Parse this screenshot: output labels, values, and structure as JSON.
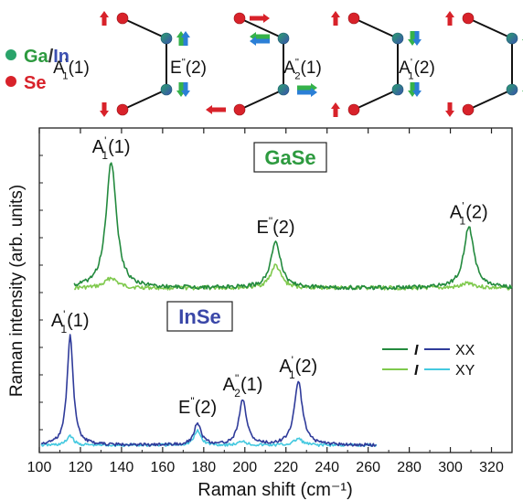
{
  "legend_top": {
    "gain_label": "Ga/In",
    "gain_ga": "Ga",
    "gain_sep": "/",
    "gain_in": "In",
    "se_label": "Se",
    "atom_colors": {
      "metal": "#2aa36a",
      "metal_alt": "#3b4fb0",
      "se": "#d8222a"
    }
  },
  "modes": [
    {
      "base": "A",
      "sup": "'",
      "sub": "1",
      "idx": "(1)"
    },
    {
      "base": "E",
      "sup": "\"",
      "sub": "",
      "idx": "(2)"
    },
    {
      "base": "A",
      "sup": "\"",
      "sub": "2",
      "idx": "(1)"
    },
    {
      "base": "A",
      "sup": "'",
      "sub": "1",
      "idx": "(2)"
    }
  ],
  "chart_data": {
    "type": "line",
    "xlabel": "Raman shift (cm⁻¹)",
    "ylabel": "Raman intensity (arb. units)",
    "xlim": [
      100,
      330
    ],
    "xticks": [
      100,
      120,
      140,
      160,
      180,
      200,
      220,
      240,
      260,
      280,
      300,
      320
    ],
    "colors": {
      "gase_xx": "#238a3e",
      "gase_xy": "#7fc94d",
      "inse_xx": "#2f3b9a",
      "inse_xy": "#45c9e0"
    },
    "panels": [
      {
        "name": "GaSe",
        "name_color": "#2d9a3f",
        "x_range": [
          117,
          330
        ],
        "series": [
          {
            "pol": "XX",
            "peaks": [
              [
                135,
                1.0,
                3.0
              ],
              [
                215,
                0.36,
                3.0
              ],
              [
                309,
                0.48,
                3.0
              ]
            ]
          },
          {
            "pol": "XY",
            "peaks": [
              [
                135,
                0.08,
                3.5
              ],
              [
                215,
                0.18,
                3.0
              ],
              [
                309,
                0.04,
                3.5
              ]
            ]
          }
        ],
        "peak_labels": [
          {
            "x": 135,
            "base": "A",
            "sup": "'",
            "sub": "1",
            "idx": "(1)"
          },
          {
            "x": 215,
            "base": "E",
            "sup": "\"",
            "sub": "",
            "idx": "(2)"
          },
          {
            "x": 309,
            "base": "A",
            "sup": "'",
            "sub": "1",
            "idx": "(2)"
          }
        ]
      },
      {
        "name": "InSe",
        "name_color": "#3a47a8",
        "x_range": [
          101,
          264
        ],
        "series": [
          {
            "pol": "XX",
            "peaks": [
              [
                115,
                1.0,
                1.8
              ],
              [
                177,
                0.2,
                2.0
              ],
              [
                199,
                0.41,
                2.2
              ],
              [
                226,
                0.58,
                2.4
              ]
            ]
          },
          {
            "pol": "XY",
            "peaks": [
              [
                115,
                0.09,
                1.8
              ],
              [
                177,
                0.13,
                2.0
              ],
              [
                199,
                0.04,
                2.0
              ],
              [
                226,
                0.06,
                2.4
              ]
            ]
          }
        ],
        "peak_labels": [
          {
            "x": 115,
            "base": "A",
            "sup": "'",
            "sub": "1",
            "idx": "(1)"
          },
          {
            "x": 177,
            "base": "E",
            "sup": "\"",
            "sub": "",
            "idx": "(2)"
          },
          {
            "x": 199,
            "base": "A",
            "sup": "\"",
            "sub": "2",
            "idx": "(1)"
          },
          {
            "x": 226,
            "base": "A",
            "sup": "'",
            "sub": "1",
            "idx": "(2)"
          }
        ]
      }
    ],
    "legend": {
      "placement": "lower-right",
      "italic_symbol": "I",
      "entries": [
        "XX",
        "XY"
      ]
    }
  }
}
